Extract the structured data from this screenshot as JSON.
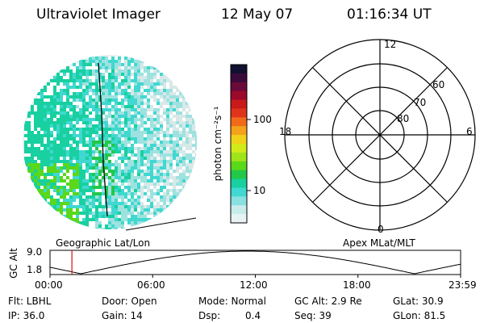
{
  "header": {
    "instrument": "Ultraviolet Imager",
    "date": "12 May 07",
    "time": "01:16:34 UT"
  },
  "colorbar": {
    "unit_label": "photon cm⁻²s⁻¹",
    "ticks": [
      "100",
      "10"
    ],
    "colors": [
      "#101030",
      "#3a0a3a",
      "#6a0a3a",
      "#9a0a2a",
      "#c81a1a",
      "#e0341a",
      "#f06a1a",
      "#f3a21a",
      "#f0d21a",
      "#d2ea1a",
      "#a0e41a",
      "#5ad81a",
      "#22c84a",
      "#18d0a0",
      "#40d8d0",
      "#88e0e0",
      "#c8ecec",
      "#e8f4f4"
    ]
  },
  "image_panel": {
    "caption": "Geographic Lat/Lon"
  },
  "polar_panel": {
    "caption": "Apex MLat/MLT",
    "mlt_labels": {
      "top": "12",
      "bottom": "0",
      "left": "18",
      "right": "6"
    },
    "lat_labels": [
      "60",
      "70",
      "80"
    ]
  },
  "altitude_plot": {
    "ylabel": "GC Alt",
    "yticks": [
      "9.0",
      "1.8"
    ],
    "xticks": [
      "00:00",
      "06:00",
      "12:00",
      "18:00",
      "23:59"
    ],
    "marker_hours": 1.28
  },
  "info": {
    "flt": "Flt: LBHL",
    "ip": "IP: 36.0",
    "door": "Door: Open",
    "gain": "Gain: 14",
    "mode": "Mode: Normal",
    "dsp_label": "Dsp:",
    "dsp_value": "0.4",
    "gc_alt": "GC Alt: 2.9 Re",
    "seq": "Seq: 39",
    "glat": "GLat: 30.9",
    "glon": "GLon: 81.5"
  }
}
